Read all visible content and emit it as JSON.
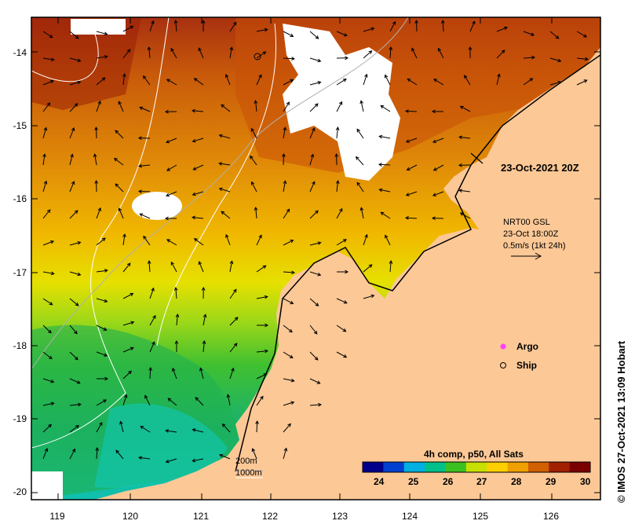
{
  "map": {
    "lon_ticks": [
      "119",
      "120",
      "121",
      "122",
      "123",
      "124",
      "125",
      "126"
    ],
    "lat_ticks": [
      "-14",
      "-15",
      "-16",
      "-17",
      "-18",
      "-19",
      "-20"
    ],
    "timestamp_label": "23-Oct-2021 20Z",
    "current_source": "NRT00 GSL",
    "current_time": "23-Oct 18:00Z",
    "current_scale": "0.5m/s (1kt 24h)",
    "legend_argo": "Argo",
    "legend_ship": "Ship",
    "contour_200": "200m",
    "contour_1000": "1000m",
    "colorbar_title": "4h comp, p50, All Sats",
    "colorbar_ticks": [
      "24",
      "25",
      "26",
      "27",
      "28",
      "29",
      "30"
    ],
    "colorbar_range": [
      23.4,
      30
    ],
    "colorbar_colors": [
      "#00008b",
      "#0040d0",
      "#00b0e0",
      "#00c08a",
      "#3cc020",
      "#c8e000",
      "#ffd000",
      "#f0a000",
      "#d06000",
      "#a02000",
      "#7a0000"
    ],
    "credit": "IMOS 27-Oct-2021 13:09 Hobart",
    "credit_symbol": "©",
    "colors": {
      "land": "#fcc896",
      "ocean_warm": "#d26a0a",
      "ocean_cool": "#20c070",
      "cloud": "#ffffff"
    }
  }
}
